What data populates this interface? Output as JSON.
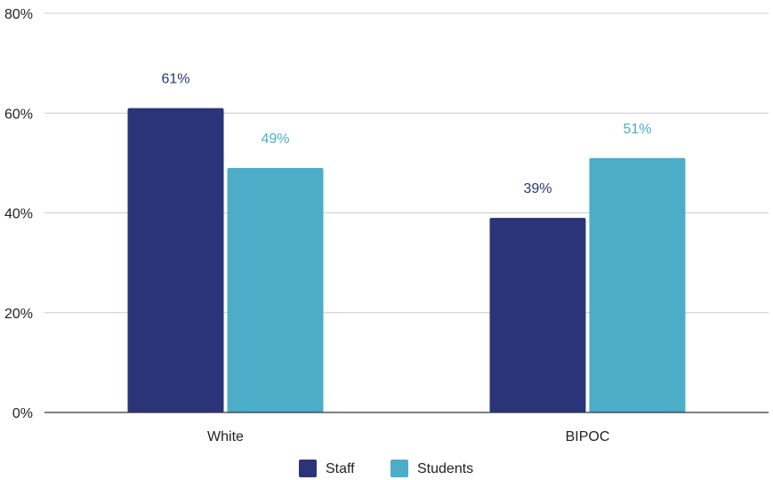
{
  "chart_data": {
    "type": "bar",
    "title": "",
    "xlabel": "",
    "ylabel": "",
    "categories": [
      "White",
      "BIPOC"
    ],
    "series": [
      {
        "name": "Staff",
        "values": [
          61,
          39
        ],
        "color": "#2b3478"
      },
      {
        "name": "Students",
        "values": [
          49,
          51
        ],
        "color": "#4badc8"
      }
    ],
    "ylim": [
      0,
      80
    ],
    "yticks": [
      0,
      20,
      40,
      60,
      80
    ],
    "value_suffix": "%",
    "grid": true,
    "legend": "bottom"
  }
}
